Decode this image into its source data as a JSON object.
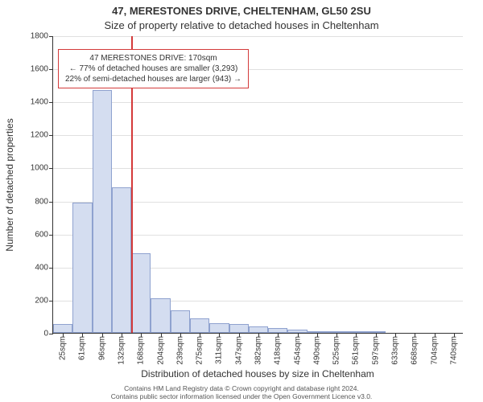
{
  "header": {
    "title": "47, MERESTONES DRIVE, CHELTENHAM, GL50 2SU",
    "subtitle": "Size of property relative to detached houses in Cheltenham"
  },
  "axes": {
    "ylabel": "Number of detached properties",
    "xlabel": "Distribution of detached houses by size in Cheltenham",
    "ylim_max": 1800,
    "ytick_step": 200,
    "grid_color": "#e0e0e0",
    "axis_color": "#333333",
    "label_fontsize": 12,
    "tick_fontsize": 10
  },
  "chart": {
    "type": "histogram",
    "bar_fill": "#d4ddf0",
    "bar_stroke": "#8fa2cf",
    "background": "#ffffff",
    "categories": [
      "25sqm",
      "61sqm",
      "96sqm",
      "132sqm",
      "168sqm",
      "204sqm",
      "239sqm",
      "275sqm",
      "311sqm",
      "347sqm",
      "382sqm",
      "418sqm",
      "454sqm",
      "490sqm",
      "525sqm",
      "561sqm",
      "597sqm",
      "633sqm",
      "668sqm",
      "704sqm",
      "740sqm"
    ],
    "values": [
      55,
      790,
      1470,
      880,
      480,
      210,
      135,
      90,
      60,
      55,
      40,
      30,
      20,
      12,
      12,
      8,
      10,
      0,
      0,
      0,
      0
    ]
  },
  "marker": {
    "position_bin_index": 4,
    "color": "#d43a3a",
    "width": 2
  },
  "annotation": {
    "line1": "47 MERESTONES DRIVE: 170sqm",
    "line2": "← 77% of detached houses are smaller (3,293)",
    "line3": "22% of semi-detached houses are larger (943) →",
    "border_color": "#d43a3a"
  },
  "footer": {
    "line1": "Contains HM Land Registry data © Crown copyright and database right 2024.",
    "line2": "Contains public sector information licensed under the Open Government Licence v3.0."
  }
}
